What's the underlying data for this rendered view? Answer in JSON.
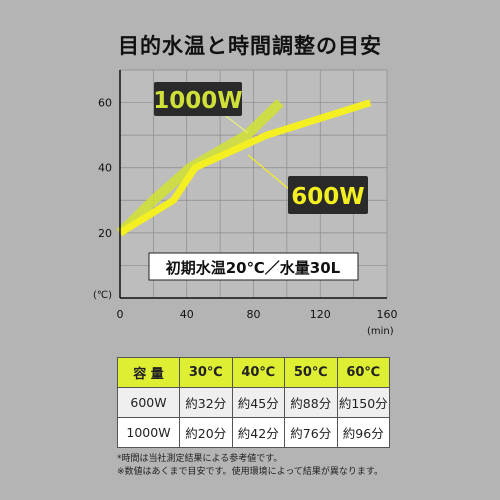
{
  "title": "目的水温と時間調整の目安",
  "chart_data": {
    "type": "line",
    "x_unit": "(min)",
    "y_unit": "(℃)",
    "xlim": [
      0,
      160
    ],
    "ylim": [
      0,
      70
    ],
    "x_ticks": [
      0,
      40,
      80,
      120,
      160
    ],
    "y_ticks": [
      20,
      40,
      60
    ],
    "grid": true,
    "series": [
      {
        "name": "1000W",
        "color": "#cfe03a",
        "points": [
          [
            0,
            20
          ],
          [
            20,
            30
          ],
          [
            42,
            40
          ],
          [
            76,
            50
          ],
          [
            96,
            60
          ]
        ]
      },
      {
        "name": "600W",
        "color": "#f4ef22",
        "points": [
          [
            0,
            20
          ],
          [
            32,
            30
          ],
          [
            45,
            40
          ],
          [
            88,
            50
          ],
          [
            150,
            60
          ]
        ]
      }
    ],
    "annotation": "初期水温20℃／水量30L"
  },
  "table": {
    "headers": [
      "容 量",
      "30℃",
      "40℃",
      "50℃",
      "60℃"
    ],
    "rows": [
      [
        "600W",
        "約32分",
        "約45分",
        "約88分",
        "約150分"
      ],
      [
        "1000W",
        "約20分",
        "約42分",
        "約76分",
        "約96分"
      ]
    ]
  },
  "notes": [
    "*時間は当社測定結果による参考値です。",
    "※数値はあくまで目安です。使用環境によって結果が異なります。"
  ]
}
